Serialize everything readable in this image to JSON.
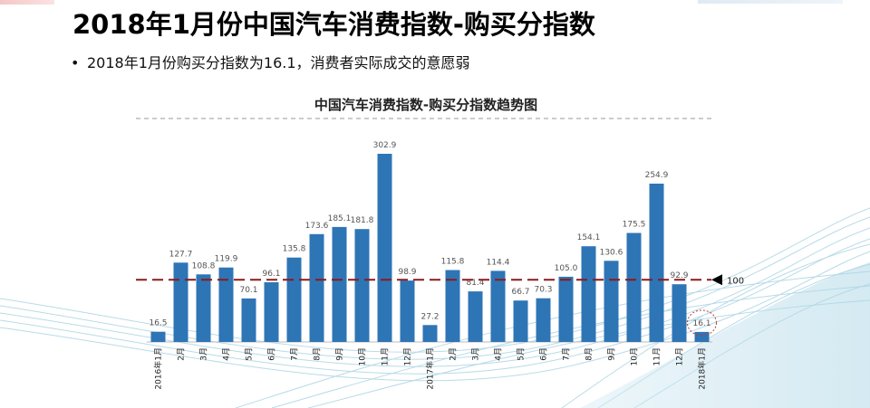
{
  "slide": {
    "title": "2018年1月份中国汽车消费指数-购买分指数",
    "bullet": "2018年1月份购买分指数为16.1，消费者实际成交的意愿弱"
  },
  "colors": {
    "bar": "#2e75b6",
    "reference_line": "#8b1a1a",
    "highlight_circle": "#c0392b",
    "wave": "#a9d4e4"
  },
  "chart_data": {
    "type": "bar",
    "title": "中国汽车消费指数-购买分指数趋势图",
    "categories": [
      "2016年1月",
      "2月",
      "3月",
      "4月",
      "5月",
      "6月",
      "7月",
      "8月",
      "9月",
      "10月",
      "11月",
      "12月",
      "2017年1月",
      "2月",
      "3月",
      "4月",
      "5月",
      "6月",
      "7月",
      "8月",
      "9月",
      "10月",
      "11月",
      "12月",
      "2018年1月"
    ],
    "values": [
      16.5,
      127.7,
      108.8,
      119.9,
      70.1,
      96.1,
      135.8,
      173.6,
      185.1,
      181.8,
      302.9,
      98.9,
      27.2,
      115.8,
      81.4,
      114.4,
      66.7,
      70.3,
      105.0,
      154.1,
      130.6,
      175.5,
      254.9,
      92.9,
      16.1
    ],
    "value_labels": [
      "16.5",
      "127.7",
      "108.8",
      "119.9",
      "70.1",
      "96.1",
      "135.8",
      "173.6",
      "185.1",
      "181.8",
      "302.9",
      "98.9",
      "27.2",
      "115.8",
      "81.4",
      "114.4",
      "66.7",
      "70.3",
      "105.0",
      "154.1",
      "130.6",
      "175.5",
      "254.9",
      "92.9",
      "16.1"
    ],
    "reference_line": {
      "value": 100,
      "label": "100"
    },
    "highlight_index": 24,
    "ylim": [
      0,
      330
    ],
    "xlabel": "",
    "ylabel": "",
    "grid": false,
    "legend": "none"
  }
}
